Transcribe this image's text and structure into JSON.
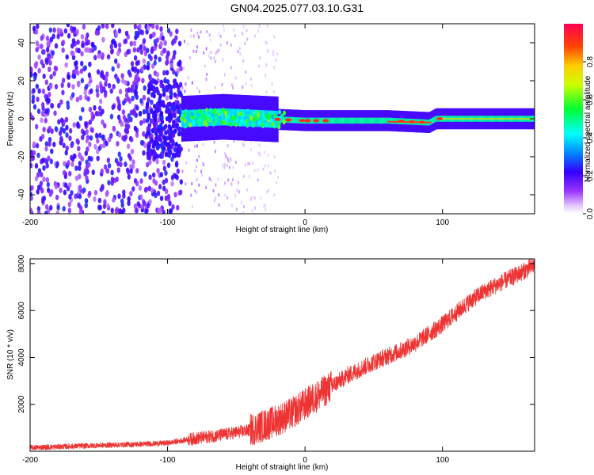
{
  "figure": {
    "title": "GN04.2025.077.03.10.G31"
  },
  "chart_data": [
    {
      "type": "heatmap",
      "xlabel": "Height of straight line (km)",
      "ylabel": "Frequency (Hz)",
      "xlim": [
        -200,
        167
      ],
      "ylim": [
        -50,
        50
      ],
      "xticks": [
        -200,
        -100,
        0,
        100
      ],
      "yticks": [
        -40,
        -20,
        0,
        20,
        40
      ],
      "colorbar": {
        "label": "Normalized spectral amplitude",
        "range": [
          0.0,
          1.0
        ],
        "ticks": [
          "0.0",
          "0.2",
          "0.4",
          "0.6",
          "0.8"
        ],
        "colormap": "rainbow"
      },
      "regions": [
        {
          "x": [
            -200,
            -90
          ],
          "description_value": "scattered noise",
          "amplitude": 0.25
        },
        {
          "x": [
            -90,
            -20
          ],
          "freq_center": 0,
          "amplitude": 0.5
        },
        {
          "x": [
            -20,
            167
          ],
          "freq_center": 0,
          "amplitude": 0.9
        }
      ],
      "ridge": {
        "x": [
          -90,
          -60,
          -30,
          0,
          30,
          60,
          90,
          95,
          100,
          130,
          167
        ],
        "freq": [
          0,
          1,
          0,
          -1,
          -1,
          -1,
          -2,
          0,
          0,
          0,
          0
        ]
      }
    },
    {
      "type": "line",
      "xlabel": "Height of straight line (km)",
      "ylabel": "SNR (10 * v/v)",
      "xlim": [
        -200,
        167
      ],
      "ylim": [
        0,
        8200
      ],
      "xticks": [
        -200,
        -100,
        0,
        100
      ],
      "yticks": [
        2000,
        4000,
        6000,
        8000
      ],
      "color": "#ee3333",
      "series": [
        {
          "x": [
            -200,
            -150,
            -120,
            -100,
            -85,
            -60,
            -40,
            -25,
            -10,
            0,
            10,
            20,
            30,
            40,
            50,
            60,
            70,
            80,
            90,
            100,
            110,
            120,
            130,
            140,
            150,
            160,
            167
          ],
          "y": [
            150,
            250,
            300,
            350,
            500,
            700,
            900,
            1200,
            1600,
            2000,
            2400,
            2800,
            3200,
            3500,
            3800,
            4050,
            4300,
            4600,
            5000,
            5400,
            5900,
            6400,
            6800,
            7100,
            7400,
            7700,
            7950
          ]
        }
      ]
    }
  ]
}
